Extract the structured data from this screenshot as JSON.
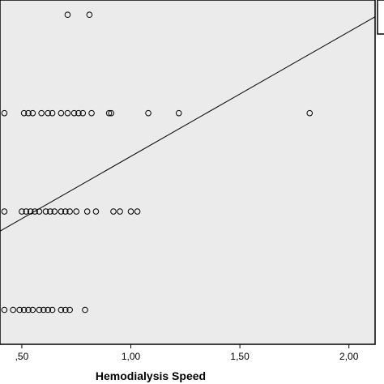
{
  "chart_data": {
    "type": "scatter",
    "title": "",
    "xlabel": "Hemodialysis Speed",
    "ylabel": "",
    "xlim": [
      0.4,
      2.12
    ],
    "ylim": [
      -0.35,
      3.15
    ],
    "x_ticks": [
      {
        "value": 0.5,
        "label": ",50"
      },
      {
        "value": 1.0,
        "label": "1,00"
      },
      {
        "value": 1.5,
        "label": "1,50"
      },
      {
        "value": 2.0,
        "label": "2,00"
      }
    ],
    "background": "#ebebeb",
    "marker_color": "#000000",
    "fit_line": {
      "x": [
        0.4,
        2.12
      ],
      "y": [
        0.8,
        2.98
      ]
    },
    "series": [
      {
        "points": [
          {
            "x": 0.71,
            "y": 3
          },
          {
            "x": 0.81,
            "y": 3
          },
          {
            "x": 0.42,
            "y": 2
          },
          {
            "x": 0.51,
            "y": 2
          },
          {
            "x": 0.53,
            "y": 2
          },
          {
            "x": 0.55,
            "y": 2
          },
          {
            "x": 0.59,
            "y": 2
          },
          {
            "x": 0.62,
            "y": 2
          },
          {
            "x": 0.64,
            "y": 2
          },
          {
            "x": 0.68,
            "y": 2
          },
          {
            "x": 0.71,
            "y": 2
          },
          {
            "x": 0.74,
            "y": 2
          },
          {
            "x": 0.76,
            "y": 2
          },
          {
            "x": 0.78,
            "y": 2
          },
          {
            "x": 0.82,
            "y": 2
          },
          {
            "x": 0.9,
            "y": 2
          },
          {
            "x": 0.91,
            "y": 2
          },
          {
            "x": 1.08,
            "y": 2
          },
          {
            "x": 1.22,
            "y": 2
          },
          {
            "x": 1.82,
            "y": 2
          },
          {
            "x": 0.42,
            "y": 1
          },
          {
            "x": 0.5,
            "y": 1
          },
          {
            "x": 0.52,
            "y": 1
          },
          {
            "x": 0.54,
            "y": 1
          },
          {
            "x": 0.56,
            "y": 1
          },
          {
            "x": 0.58,
            "y": 1
          },
          {
            "x": 0.61,
            "y": 1
          },
          {
            "x": 0.63,
            "y": 1
          },
          {
            "x": 0.65,
            "y": 1
          },
          {
            "x": 0.68,
            "y": 1
          },
          {
            "x": 0.7,
            "y": 1
          },
          {
            "x": 0.72,
            "y": 1
          },
          {
            "x": 0.75,
            "y": 1
          },
          {
            "x": 0.8,
            "y": 1
          },
          {
            "x": 0.84,
            "y": 1
          },
          {
            "x": 0.92,
            "y": 1
          },
          {
            "x": 0.95,
            "y": 1
          },
          {
            "x": 1.0,
            "y": 1
          },
          {
            "x": 1.03,
            "y": 1
          },
          {
            "x": 0.42,
            "y": 0
          },
          {
            "x": 0.46,
            "y": 0
          },
          {
            "x": 0.49,
            "y": 0
          },
          {
            "x": 0.51,
            "y": 0
          },
          {
            "x": 0.53,
            "y": 0
          },
          {
            "x": 0.55,
            "y": 0
          },
          {
            "x": 0.58,
            "y": 0
          },
          {
            "x": 0.6,
            "y": 0
          },
          {
            "x": 0.62,
            "y": 0
          },
          {
            "x": 0.64,
            "y": 0
          },
          {
            "x": 0.68,
            "y": 0
          },
          {
            "x": 0.7,
            "y": 0
          },
          {
            "x": 0.72,
            "y": 0
          },
          {
            "x": 0.79,
            "y": 0
          }
        ]
      }
    ]
  }
}
